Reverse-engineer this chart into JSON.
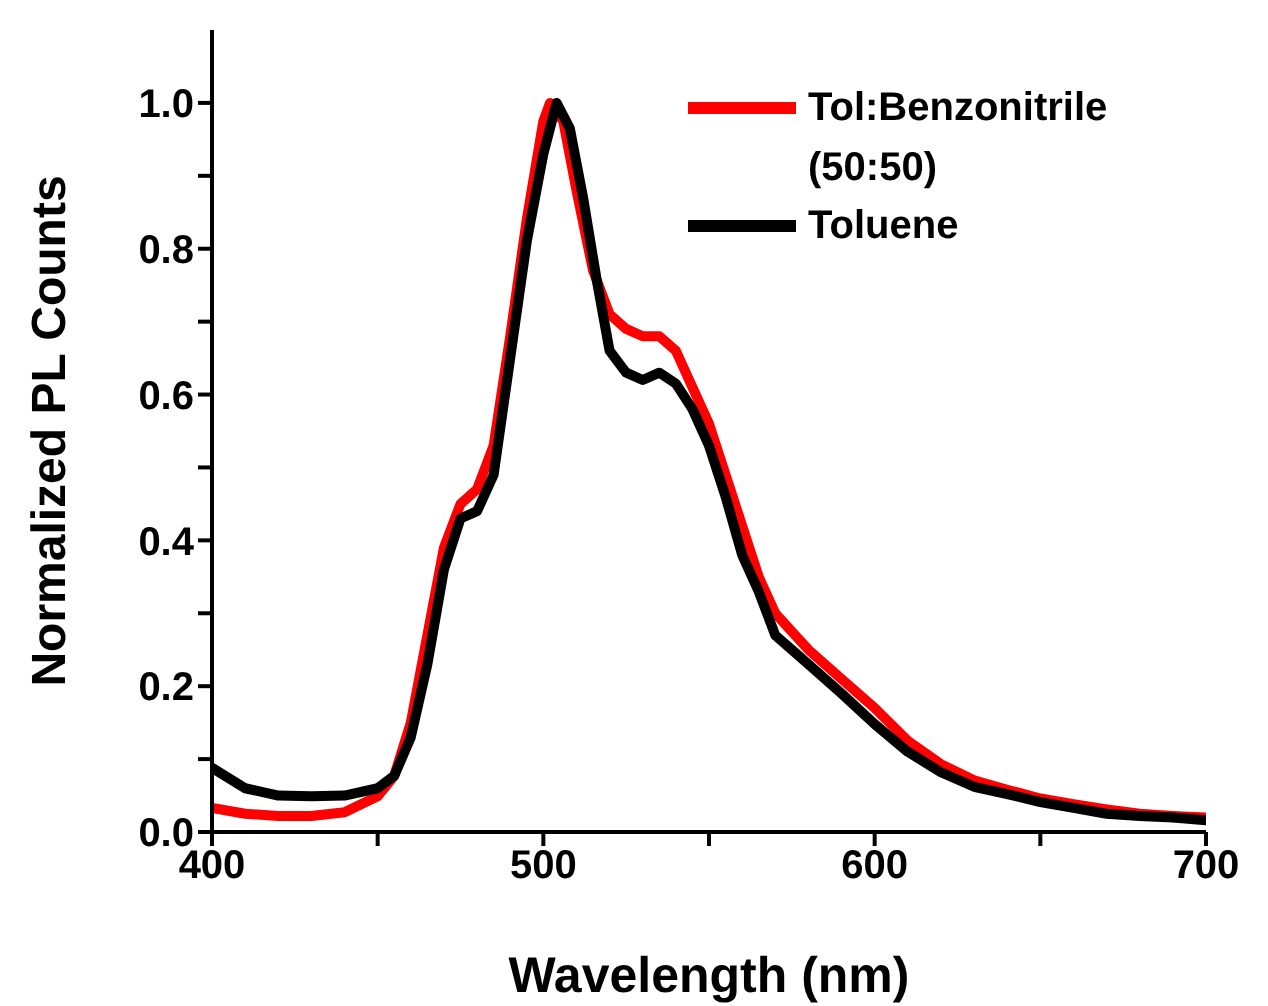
{
  "chart_data": {
    "type": "line",
    "xlabel": "Wavelength (nm)",
    "ylabel": "Normalized PL Counts",
    "xlim": [
      400,
      700
    ],
    "xticks": [
      400,
      {
        "value": 450,
        "label": null
      },
      500,
      {
        "value": 550,
        "label": null
      },
      600,
      {
        "value": 650,
        "label": null
      },
      700
    ],
    "ylim": [
      0,
      1.1
    ],
    "yticks": [
      "0.0",
      {
        "value": 0.1,
        "label": null
      },
      {
        "value": 0.2,
        "label": "0.2"
      },
      {
        "value": 0.3,
        "label": null
      },
      {
        "value": 0.4,
        "label": "0.4"
      },
      {
        "value": 0.5,
        "label": null
      },
      {
        "value": 0.6,
        "label": "0.6"
      },
      {
        "value": 0.7,
        "label": null
      },
      {
        "value": 0.8,
        "label": "0.8"
      },
      {
        "value": 0.9,
        "label": null
      },
      {
        "value": 1.0,
        "label": "1.0"
      }
    ],
    "legend": "top right",
    "grid": false,
    "marker": "none",
    "line_style": "solid",
    "series": [
      {
        "name": "Tol:Benzonitrile (50:50)",
        "color": "#ff0000",
        "x": [
          400,
          410,
          420,
          430,
          440,
          450,
          455,
          460,
          465,
          470,
          475,
          480,
          485,
          490,
          495,
          500,
          502,
          506,
          510,
          515,
          520,
          525,
          530,
          535,
          540,
          545,
          550,
          555,
          560,
          565,
          570,
          580,
          590,
          600,
          610,
          620,
          630,
          640,
          650,
          660,
          670,
          680,
          690,
          700
        ],
        "values": [
          0.033,
          0.025,
          0.022,
          0.022,
          0.027,
          0.049,
          0.077,
          0.15,
          0.27,
          0.39,
          0.45,
          0.47,
          0.53,
          0.68,
          0.84,
          0.975,
          1.0,
          0.975,
          0.88,
          0.77,
          0.71,
          0.69,
          0.68,
          0.68,
          0.66,
          0.61,
          0.56,
          0.49,
          0.42,
          0.35,
          0.3,
          0.25,
          0.21,
          0.17,
          0.125,
          0.093,
          0.071,
          0.058,
          0.046,
          0.038,
          0.031,
          0.025,
          0.022,
          0.02
        ]
      },
      {
        "name": "Toluene",
        "color": "#000000",
        "x": [
          400,
          410,
          420,
          430,
          440,
          450,
          455,
          460,
          465,
          470,
          475,
          480,
          485,
          490,
          495,
          500,
          504,
          508,
          512,
          516,
          520,
          525,
          530,
          535,
          540,
          545,
          550,
          555,
          560,
          565,
          570,
          580,
          590,
          600,
          610,
          620,
          630,
          640,
          650,
          660,
          670,
          680,
          690,
          700
        ],
        "values": [
          0.088,
          0.06,
          0.05,
          0.049,
          0.05,
          0.06,
          0.077,
          0.13,
          0.23,
          0.36,
          0.43,
          0.44,
          0.49,
          0.65,
          0.81,
          0.93,
          1.0,
          0.965,
          0.87,
          0.76,
          0.66,
          0.63,
          0.62,
          0.63,
          0.615,
          0.58,
          0.53,
          0.46,
          0.38,
          0.33,
          0.27,
          0.23,
          0.19,
          0.148,
          0.11,
          0.082,
          0.062,
          0.052,
          0.041,
          0.033,
          0.025,
          0.022,
          0.02,
          0.016
        ]
      }
    ]
  }
}
